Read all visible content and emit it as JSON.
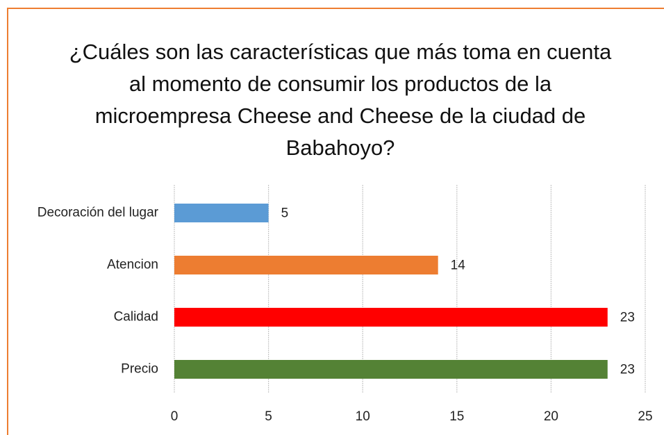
{
  "chart_data": {
    "type": "bar",
    "orientation": "horizontal",
    "title": "¿Cuáles son las características que más toma en cuenta al momento de consumir los productos de la microempresa Cheese and Cheese de la ciudad de Babahoyo?",
    "categories": [
      "Decoración del lugar",
      "Atencion",
      "Calidad",
      "Precio"
    ],
    "values": [
      5,
      14,
      23,
      23
    ],
    "colors": [
      "#5b9bd5",
      "#ed7d31",
      "#ff0000",
      "#548235"
    ],
    "xlim": [
      0,
      25
    ],
    "xticks": [
      0,
      5,
      10,
      15,
      20,
      25
    ],
    "grid": true
  }
}
